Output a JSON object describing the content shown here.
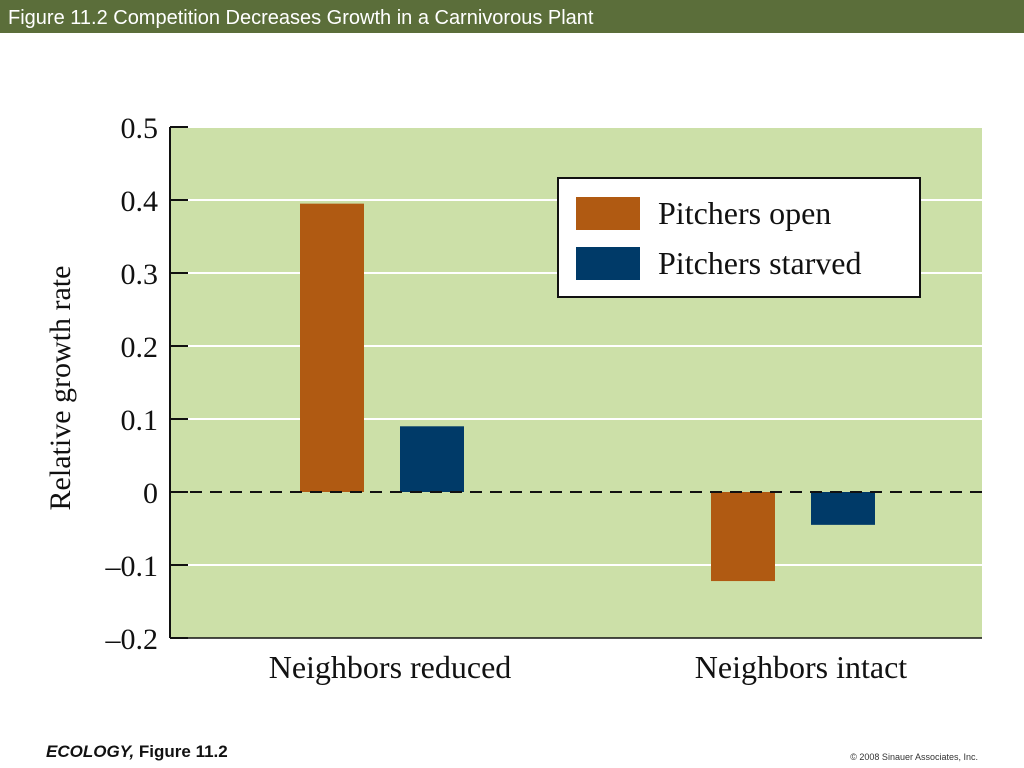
{
  "header": {
    "title": "Figure 11.2  Competition Decreases Growth in a Carnivorous Plant"
  },
  "chart_data": {
    "type": "bar",
    "categories": [
      "Neighbors reduced",
      "Neighbors intact"
    ],
    "series": [
      {
        "name": "Pitchers open",
        "values": [
          0.395,
          -0.122
        ],
        "color": "#b05a12"
      },
      {
        "name": "Pitchers starved",
        "values": [
          0.09,
          -0.045
        ],
        "color": "#003a68"
      }
    ],
    "ylabel": "Relative growth rate",
    "xlabel": "",
    "ylim": [
      -0.2,
      0.5
    ],
    "yticks": [
      "0.5",
      "0.4",
      "0.3",
      "0.2",
      "0.1",
      "0",
      "–0.1",
      "–0.2"
    ],
    "ytick_values": [
      0.5,
      0.4,
      0.3,
      0.2,
      0.1,
      0,
      -0.1,
      -0.2
    ],
    "grid": true,
    "zero_line": "dashed",
    "legend_position": "top-right",
    "plot_background": "#cce0a8"
  },
  "footer": {
    "source_book": "ECOLOGY,",
    "source_figure": "Figure 11.2",
    "copyright": "© 2008 Sinauer Associates, Inc."
  }
}
